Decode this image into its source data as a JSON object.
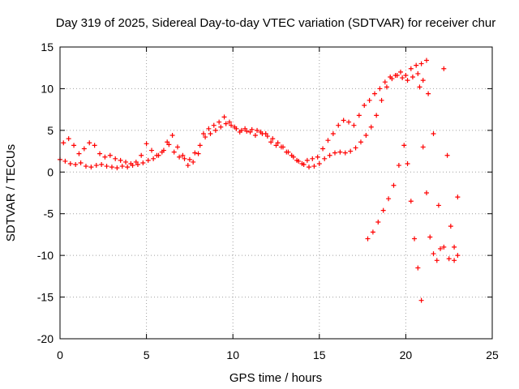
{
  "chart_data": {
    "type": "scatter",
    "title": "Day 319 of 2025, Sidereal Day-to-day VTEC variation (SDTVAR) for receiver chur",
    "xlabel": "GPS time / hours",
    "ylabel": "SDTVAR / TECUs",
    "xlim": [
      0,
      25
    ],
    "ylim": [
      -20,
      15
    ],
    "xticks": [
      0,
      5,
      10,
      15,
      20,
      25
    ],
    "yticks": [
      -20,
      -15,
      -10,
      -5,
      0,
      5,
      10,
      15
    ],
    "grid": true,
    "marker": "+",
    "color": "#ff0000",
    "series": [
      {
        "name": "main",
        "x": [
          0.0,
          0.3,
          0.6,
          0.9,
          1.2,
          1.5,
          1.8,
          2.1,
          2.4,
          2.7,
          3.0,
          3.3,
          3.6,
          3.9,
          4.2,
          4.5,
          4.8,
          5.1,
          5.4,
          5.7,
          6.0,
          6.3,
          6.6,
          6.9,
          7.2,
          7.5,
          7.8,
          8.1,
          8.4,
          8.7,
          9.0,
          9.3,
          9.6,
          9.9,
          10.2,
          10.5,
          10.8,
          11.1,
          11.4,
          11.7,
          12.0,
          12.3,
          12.6,
          12.9,
          13.2,
          13.5,
          13.8,
          14.1,
          14.4,
          14.7,
          15.0,
          15.3,
          15.6,
          15.9,
          16.2,
          16.5,
          16.8,
          17.1,
          17.4,
          17.7,
          18.0,
          18.3,
          18.6,
          18.9,
          19.2,
          19.5,
          19.8,
          20.1,
          20.4,
          20.7,
          21.0,
          21.3,
          21.6,
          21.9,
          22.2,
          22.5,
          22.8,
          23.0
        ],
        "y": [
          1.5,
          1.3,
          1.0,
          0.9,
          1.1,
          0.7,
          0.6,
          0.8,
          0.9,
          0.7,
          0.6,
          0.5,
          0.7,
          0.6,
          0.8,
          0.9,
          1.1,
          1.4,
          1.6,
          2.0,
          2.6,
          3.3,
          2.4,
          1.8,
          1.6,
          1.5,
          2.3,
          3.2,
          4.2,
          4.6,
          5.0,
          5.4,
          5.8,
          5.6,
          5.2,
          5.0,
          4.9,
          5.1,
          5.0,
          4.6,
          4.3,
          4.0,
          3.5,
          3.0,
          2.4,
          1.8,
          1.3,
          0.9,
          0.6,
          0.7,
          1.0,
          1.6,
          2.0,
          2.3,
          2.4,
          2.3,
          2.5,
          2.9,
          3.6,
          4.4,
          5.4,
          6.8,
          8.6,
          10.2,
          11.2,
          11.6,
          11.3,
          11.0,
          11.4,
          11.8,
          11.0,
          9.4,
          4.6,
          -4.0,
          -9.0,
          -10.4,
          -10.6,
          -10.0
        ]
      },
      {
        "name": "upper-oscillation",
        "x": [
          0.2,
          0.5,
          0.8,
          1.1,
          1.4,
          1.7,
          2.0,
          2.3,
          2.6,
          2.9,
          3.2,
          3.5,
          3.8,
          4.1,
          4.4,
          4.7,
          5.0,
          5.3,
          5.6,
          5.9,
          6.2,
          6.5,
          6.8,
          7.1,
          7.4,
          7.7,
          8.0,
          8.3,
          8.6,
          8.9,
          9.2,
          9.5,
          9.8,
          10.1,
          10.4,
          10.7,
          11.0,
          11.3,
          11.6,
          11.9,
          12.2,
          12.5,
          12.8,
          13.1,
          13.4,
          13.7,
          14.0,
          14.3,
          14.6,
          14.9,
          15.2,
          15.5,
          15.8,
          16.1,
          16.4,
          16.7,
          17.0,
          17.3,
          17.6,
          17.9,
          18.2,
          18.5,
          18.8,
          19.1,
          19.4,
          19.7,
          20.0,
          20.3,
          20.6,
          20.9,
          21.2
        ],
        "y": [
          3.5,
          4.0,
          3.2,
          2.2,
          2.8,
          3.5,
          3.2,
          2.2,
          1.8,
          2.0,
          1.6,
          1.4,
          1.2,
          1.0,
          1.2,
          2.0,
          3.4,
          2.6,
          2.0,
          2.4,
          3.6,
          4.4,
          3.0,
          2.0,
          0.8,
          1.2,
          2.2,
          4.6,
          5.2,
          5.6,
          6.0,
          6.6,
          6.0,
          5.4,
          4.8,
          5.2,
          4.8,
          4.4,
          4.8,
          4.6,
          3.6,
          3.2,
          3.0,
          2.4,
          2.0,
          1.4,
          1.0,
          1.4,
          1.6,
          1.8,
          2.8,
          3.8,
          4.6,
          5.6,
          6.2,
          6.0,
          5.6,
          6.8,
          8.0,
          8.6,
          9.4,
          10.0,
          10.8,
          11.4,
          11.6,
          12.0,
          11.6,
          12.4,
          12.8,
          13.0,
          13.4
        ]
      },
      {
        "name": "descending-branch",
        "x": [
          17.8,
          18.1,
          18.4,
          18.7,
          19.0,
          19.3,
          19.6,
          19.9,
          20.1,
          20.3,
          20.5,
          20.7,
          20.9
        ],
        "y": [
          -8.0,
          -7.2,
          -6.0,
          -4.6,
          -3.2,
          -1.6,
          0.8,
          3.2,
          1.0,
          -3.5,
          -8.0,
          -11.5,
          -15.4
        ]
      },
      {
        "name": "late-spikes",
        "x": [
          20.8,
          21.0,
          21.2,
          21.4,
          21.6,
          21.8,
          22.0,
          22.2,
          22.4,
          22.6,
          22.8,
          23.0
        ],
        "y": [
          10.2,
          3.0,
          -2.5,
          -7.8,
          -9.8,
          -10.6,
          -9.2,
          12.4,
          2.0,
          -6.5,
          -9.0,
          -3.0
        ]
      }
    ]
  }
}
